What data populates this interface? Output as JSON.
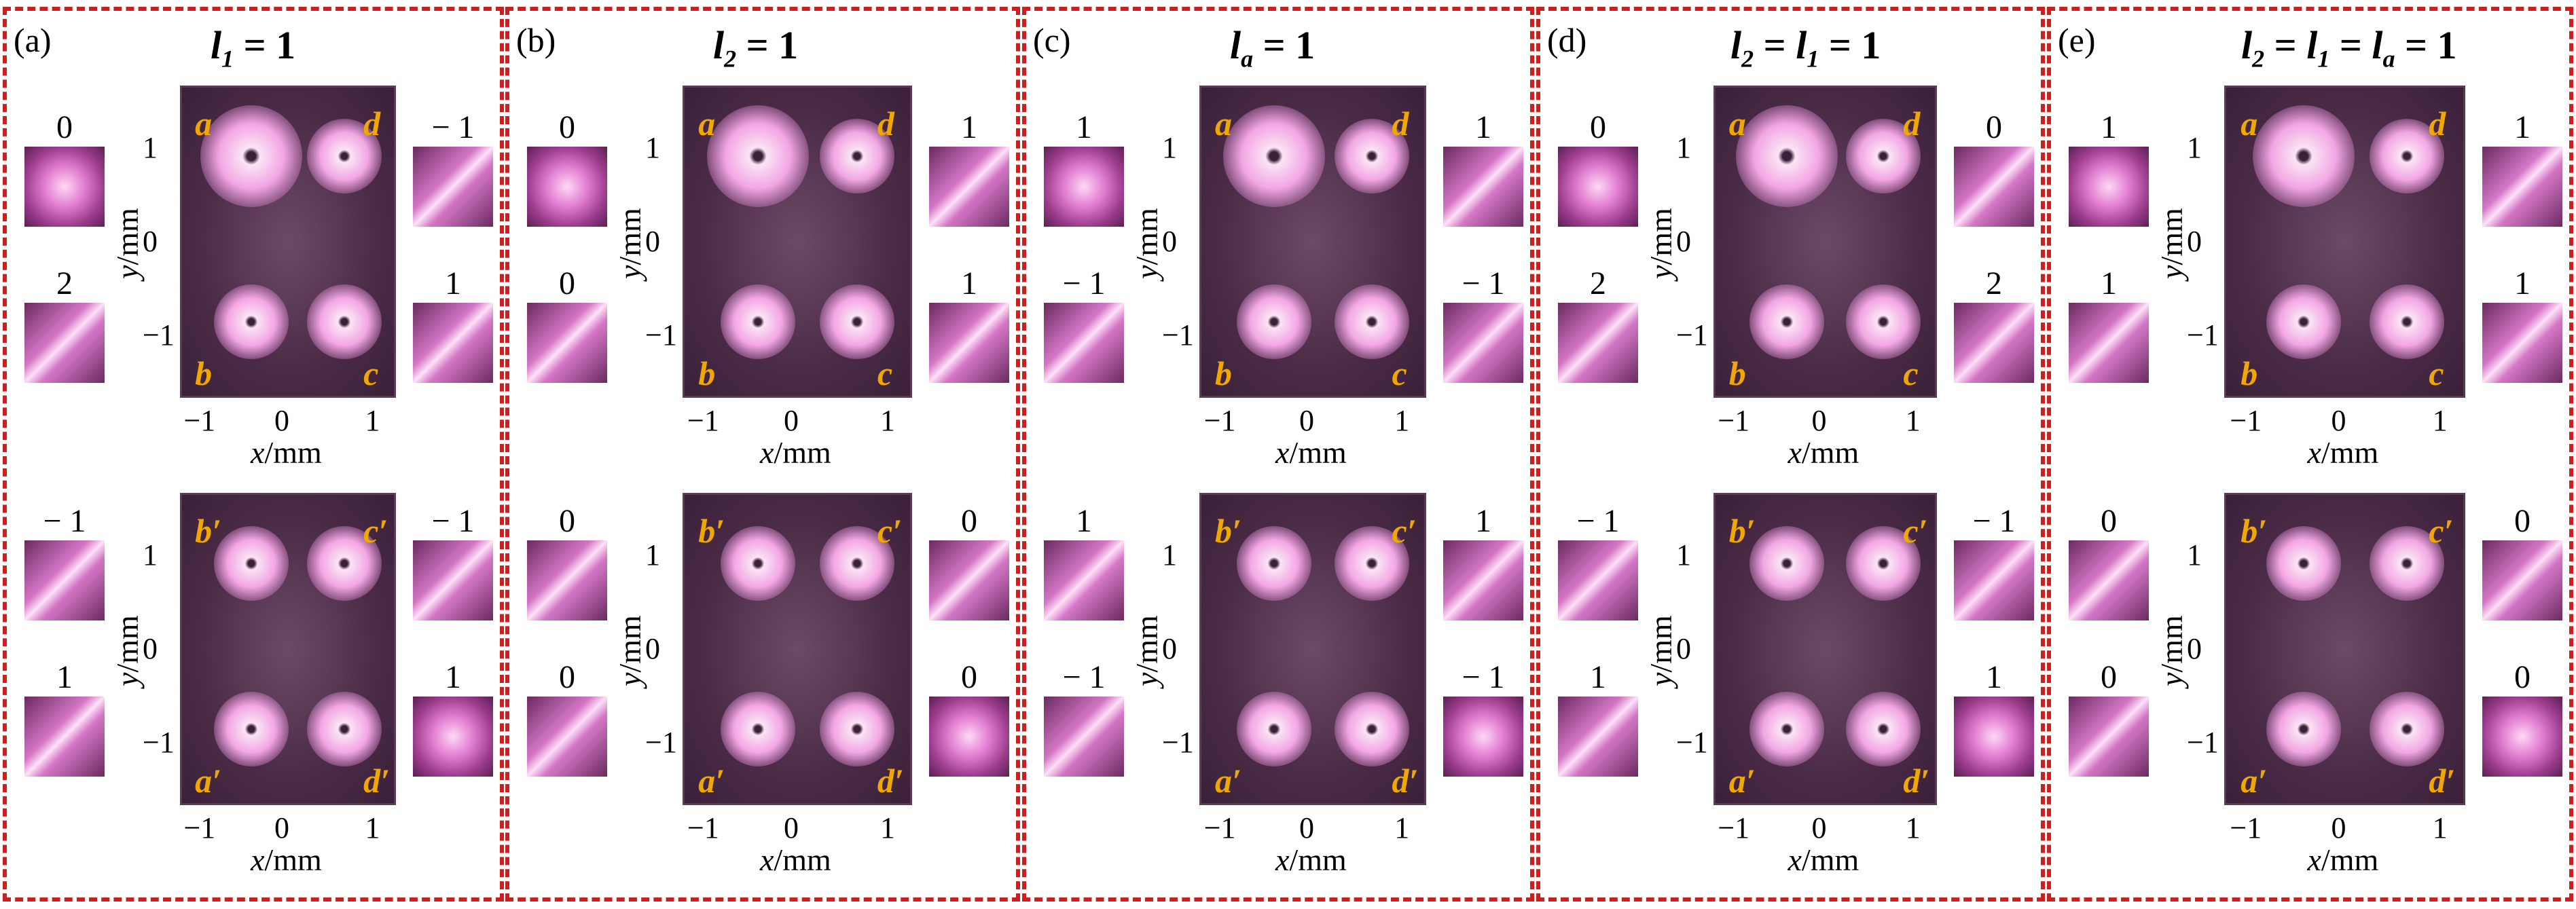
{
  "colors": {
    "border": "#cc2020",
    "marker": "#f0a800",
    "beam": "#f6b9ec",
    "background": "#4a2b46"
  },
  "panels": [
    {
      "label": "(a)",
      "title": {
        "symbol": "l",
        "sub": "1",
        "eq": " = 1"
      },
      "top_plot": {
        "markers": [
          "a",
          "d",
          "b",
          "c"
        ]
      },
      "bottom_plot": {
        "markers": [
          "b′",
          "c′",
          "a′",
          "d′"
        ]
      },
      "thumbs": {
        "tl": "0",
        "bl": "2",
        "tr": "− 1",
        "br": "1",
        "btl": "− 1",
        "bbl": "1",
        "btr": "− 1",
        "bbr": "1"
      }
    },
    {
      "label": "(b)",
      "title": {
        "symbol": "l",
        "sub": "2",
        "eq": " = 1"
      },
      "top_plot": {
        "markers": [
          "a",
          "d",
          "b",
          "c"
        ]
      },
      "bottom_plot": {
        "markers": [
          "b′",
          "c′",
          "a′",
          "d′"
        ]
      },
      "thumbs": {
        "tl": "0",
        "bl": "0",
        "tr": "1",
        "br": "1",
        "btl": "0",
        "bbl": "0",
        "btr": "0",
        "bbr": "0"
      }
    },
    {
      "label": "(c)",
      "title": {
        "symbol": "l",
        "sub": "a",
        "eq": " = 1"
      },
      "top_plot": {
        "markers": [
          "a",
          "d",
          "b",
          "c"
        ]
      },
      "bottom_plot": {
        "markers": [
          "b′",
          "c′",
          "a′",
          "d′"
        ]
      },
      "thumbs": {
        "tl": "1",
        "bl": "− 1",
        "tr": "1",
        "br": "− 1",
        "btl": "1",
        "bbl": "− 1",
        "btr": "1",
        "bbr": "− 1"
      }
    },
    {
      "label": "(d)",
      "title": {
        "symbol": "l",
        "sub": "2",
        "eq": " = ",
        "symbol2": "l",
        "sub2": "1",
        "eq2": " = 1"
      },
      "top_plot": {
        "markers": [
          "a",
          "d",
          "b",
          "c"
        ]
      },
      "bottom_plot": {
        "markers": [
          "b′",
          "c′",
          "a′",
          "d′"
        ]
      },
      "thumbs": {
        "tl": "0",
        "bl": "2",
        "tr": "0",
        "br": "2",
        "btl": "− 1",
        "bbl": "1",
        "btr": "− 1",
        "bbr": "1"
      }
    },
    {
      "label": "(e)",
      "title": {
        "symbol": "l",
        "sub": "2",
        "eq": " = ",
        "symbol2": "l",
        "sub2": "1",
        "eq2": " = ",
        "symbol3": "l",
        "sub3": "a",
        "eq3": " = 1"
      },
      "top_plot": {
        "markers": [
          "a",
          "d",
          "b",
          "c"
        ]
      },
      "bottom_plot": {
        "markers": [
          "b′",
          "c′",
          "a′",
          "d′"
        ]
      },
      "thumbs": {
        "tl": "1",
        "bl": "1",
        "tr": "1",
        "br": "1",
        "btl": "0",
        "bbl": "0",
        "btr": "0",
        "bbr": "0"
      }
    }
  ],
  "axes": {
    "x_label_var": "x",
    "y_label_var": "y",
    "unit": "/mm",
    "x_ticks": [
      "−1",
      "0",
      "1"
    ],
    "y_ticks": [
      "1",
      "0",
      "−1"
    ]
  }
}
